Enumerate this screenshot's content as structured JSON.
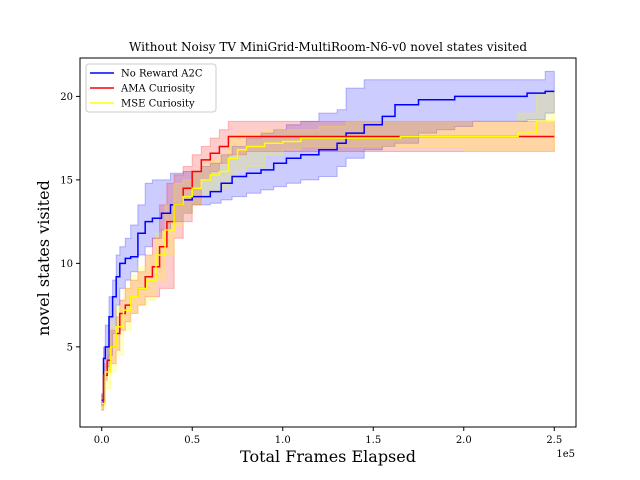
{
  "chart_data": {
    "type": "line",
    "title": "Without Noisy TV MiniGrid-MultiRoom-N6-v0 novel states visited",
    "xlabel": "Total Frames Elapsed",
    "ylabel": "novel states visited",
    "x_offset_label": "1e5",
    "xlim": [
      -0.12,
      2.62
    ],
    "ylim": [
      0.2,
      22.3
    ],
    "x_ticks": [
      0.0,
      0.5,
      1.0,
      1.5,
      2.0,
      2.5
    ],
    "x_tick_labels": [
      "0.0",
      "0.5",
      "1.0",
      "1.5",
      "2.0",
      "2.5"
    ],
    "y_ticks": [
      5,
      10,
      15,
      20
    ],
    "y_tick_labels": [
      "5",
      "10",
      "15",
      "20"
    ],
    "grid": false,
    "legend_position": "top-left",
    "series": [
      {
        "name": "No Reward A2C",
        "color": "#0000ff",
        "band_color": "#0000ff",
        "x": [
          0.0,
          0.01,
          0.02,
          0.04,
          0.06,
          0.08,
          0.1,
          0.13,
          0.16,
          0.2,
          0.24,
          0.28,
          0.33,
          0.38,
          0.45,
          0.5,
          0.55,
          0.6,
          0.66,
          0.72,
          0.8,
          0.88,
          0.95,
          1.02,
          1.1,
          1.2,
          1.3,
          1.35,
          1.45,
          1.55,
          1.62,
          1.75,
          1.85,
          1.95,
          2.05,
          2.15,
          2.25,
          2.35,
          2.45,
          2.5
        ],
        "y": [
          1.8,
          4.3,
          5.0,
          6.8,
          8.0,
          9.2,
          10.0,
          10.3,
          10.4,
          11.8,
          12.5,
          12.7,
          13.0,
          13.5,
          13.8,
          14.0,
          14.0,
          14.3,
          14.8,
          15.2,
          15.4,
          15.6,
          16.0,
          16.3,
          16.5,
          16.8,
          17.2,
          17.8,
          18.3,
          18.8,
          19.5,
          19.8,
          19.8,
          20.0,
          20.0,
          20.0,
          20.0,
          20.2,
          20.3,
          20.3
        ],
        "lower": [
          1.5,
          3.0,
          3.8,
          4.5,
          5.8,
          7.5,
          8.5,
          9.0,
          9.5,
          10.5,
          11.0,
          11.5,
          12.0,
          12.5,
          13.0,
          13.5,
          13.5,
          13.6,
          13.8,
          14.0,
          14.2,
          14.4,
          14.6,
          14.8,
          15.0,
          15.2,
          15.8,
          16.3,
          16.8,
          17.0,
          17.2,
          17.8,
          18.0,
          18.2,
          18.5,
          18.5,
          18.5,
          18.6,
          19.0,
          19.0
        ],
        "upper": [
          2.2,
          5.0,
          6.3,
          8.0,
          9.0,
          10.5,
          11.0,
          11.5,
          12.3,
          13.5,
          14.8,
          15.0,
          15.0,
          15.4,
          15.5,
          15.5,
          15.8,
          16.0,
          16.5,
          17.0,
          17.5,
          17.8,
          18.0,
          18.3,
          18.5,
          19.0,
          19.2,
          20.5,
          21.0,
          21.0,
          21.0,
          21.0,
          21.0,
          21.0,
          21.0,
          21.0,
          21.0,
          21.0,
          21.5,
          21.5
        ]
      },
      {
        "name": "AMA Curiosity",
        "color": "#ff0000",
        "band_color": "#ff0000",
        "x": [
          0.0,
          0.01,
          0.03,
          0.05,
          0.08,
          0.1,
          0.13,
          0.16,
          0.2,
          0.24,
          0.28,
          0.32,
          0.36,
          0.4,
          0.45,
          0.5,
          0.55,
          0.6,
          0.65,
          0.7,
          0.8,
          0.9,
          1.0,
          1.2,
          1.5,
          1.8,
          2.1,
          2.4,
          2.5
        ],
        "y": [
          1.6,
          3.3,
          4.2,
          5.0,
          5.8,
          7.0,
          7.5,
          8.0,
          8.5,
          9.2,
          9.8,
          11.0,
          12.5,
          13.5,
          14.5,
          15.5,
          16.2,
          16.6,
          17.0,
          17.6,
          17.6,
          17.6,
          17.6,
          17.6,
          17.6,
          17.6,
          17.6,
          17.6,
          17.6
        ],
        "lower": [
          1.2,
          3.0,
          3.5,
          4.0,
          4.8,
          6.0,
          6.5,
          7.0,
          7.5,
          8.0,
          8.0,
          8.5,
          8.5,
          11.5,
          12.5,
          13.5,
          15.0,
          15.5,
          16.0,
          16.5,
          16.7,
          16.7,
          16.7,
          16.7,
          16.7,
          16.7,
          16.7,
          16.7,
          16.7
        ],
        "upper": [
          2.1,
          4.0,
          5.0,
          6.0,
          6.8,
          7.8,
          8.5,
          9.0,
          9.5,
          10.5,
          11.5,
          13.5,
          14.8,
          15.3,
          15.8,
          16.5,
          17.0,
          17.5,
          18.0,
          18.5,
          18.5,
          18.5,
          18.5,
          18.5,
          18.5,
          18.5,
          18.5,
          18.5,
          18.5
        ]
      },
      {
        "name": "MSE Curiosity",
        "color": "#ffff00",
        "band_color": "#ffff00",
        "x": [
          0.0,
          0.02,
          0.05,
          0.08,
          0.12,
          0.16,
          0.2,
          0.25,
          0.3,
          0.35,
          0.4,
          0.45,
          0.5,
          0.55,
          0.6,
          0.65,
          0.7,
          0.75,
          0.8,
          0.9,
          1.0,
          1.1,
          1.2,
          1.35,
          1.5,
          1.65,
          1.8,
          2.0,
          2.2,
          2.3,
          2.4,
          2.5
        ],
        "y": [
          1.6,
          3.5,
          5.0,
          6.2,
          7.2,
          8.0,
          8.5,
          9.0,
          10.5,
          12.0,
          13.5,
          14.0,
          14.5,
          15.0,
          15.3,
          15.5,
          16.3,
          16.8,
          17.0,
          17.2,
          17.3,
          17.5,
          17.5,
          17.5,
          17.5,
          17.6,
          17.6,
          17.6,
          17.6,
          17.8,
          18.5,
          18.5
        ],
        "lower": [
          1.3,
          2.5,
          3.5,
          4.5,
          6.0,
          7.0,
          7.5,
          7.8,
          9.0,
          10.5,
          12.3,
          13.0,
          13.5,
          14.0,
          14.3,
          14.5,
          15.0,
          15.5,
          15.8,
          16.5,
          16.8,
          17.0,
          17.0,
          17.0,
          17.0,
          17.0,
          17.0,
          16.7,
          16.7,
          16.7,
          16.7,
          16.7
        ],
        "upper": [
          2.0,
          4.0,
          6.5,
          7.5,
          8.5,
          9.3,
          9.8,
          10.5,
          11.8,
          13.5,
          14.8,
          15.0,
          15.5,
          16.0,
          16.2,
          16.5,
          17.5,
          17.8,
          17.8,
          18.0,
          18.0,
          18.0,
          18.2,
          18.5,
          18.5,
          18.5,
          18.5,
          18.5,
          18.5,
          19.0,
          20.3,
          20.3
        ]
      }
    ]
  }
}
